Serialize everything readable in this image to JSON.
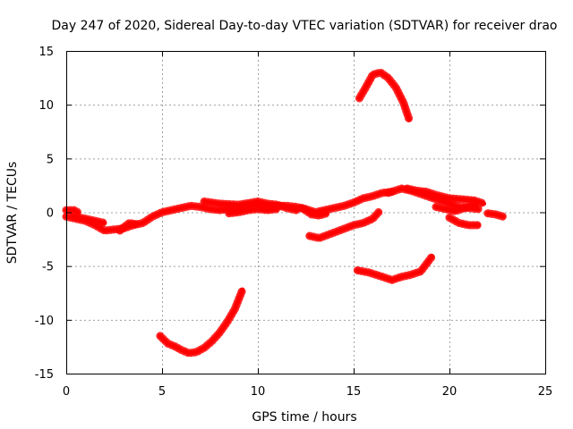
{
  "chart_data": {
    "type": "scatter",
    "title": "Day 247 of 2020, Sidereal Day-to-day VTEC variation (SDTVAR) for receiver drao",
    "xlabel": "GPS time / hours",
    "ylabel": "SDTVAR / TECUs",
    "xlim": [
      0,
      25
    ],
    "ylim": [
      -15,
      15
    ],
    "xticks": [
      0,
      5,
      10,
      15,
      20,
      25
    ],
    "yticks": [
      -15,
      -10,
      -5,
      0,
      5,
      10,
      15
    ],
    "grid": true,
    "color": "#ff0000",
    "series": [
      {
        "name": "arc-main",
        "points": [
          [
            0,
            -0.4
          ],
          [
            0.5,
            -0.6
          ],
          [
            1,
            -0.8
          ],
          [
            1.5,
            -1.2
          ],
          [
            2,
            -1.7
          ],
          [
            2.5,
            -1.6
          ],
          [
            3,
            -1.5
          ],
          [
            3.5,
            -1.2
          ],
          [
            4,
            -1.0
          ],
          [
            4.5,
            -0.4
          ],
          [
            5,
            0.0
          ],
          [
            5.5,
            0.2
          ],
          [
            6,
            0.4
          ],
          [
            6.5,
            0.6
          ],
          [
            7,
            0.5
          ],
          [
            7.5,
            0.3
          ],
          [
            8,
            0.2
          ],
          [
            8.5,
            0.3
          ],
          [
            9,
            0.4
          ],
          [
            9.5,
            0.5
          ],
          [
            10,
            0.6
          ],
          [
            10.5,
            0.5
          ],
          [
            11,
            0.6
          ],
          [
            11.5,
            0.6
          ],
          [
            12,
            0.5
          ],
          [
            12.5,
            0.3
          ],
          [
            13,
            0.0
          ],
          [
            13.5,
            0.2
          ],
          [
            14,
            0.4
          ],
          [
            14.5,
            0.6
          ],
          [
            15,
            0.9
          ],
          [
            15.5,
            1.3
          ],
          [
            16,
            1.5
          ],
          [
            16.5,
            1.8
          ],
          [
            17,
            1.9
          ]
        ]
      },
      {
        "name": "arc-start-a",
        "points": [
          [
            0,
            0.2
          ],
          [
            0.4,
            0.2
          ],
          [
            0.6,
            0.0
          ]
        ]
      },
      {
        "name": "arc-start-b",
        "points": [
          [
            0.4,
            -0.4
          ],
          [
            1.0,
            -0.6
          ],
          [
            1.5,
            -0.8
          ],
          [
            2.0,
            -1.0
          ]
        ]
      },
      {
        "name": "arc-dip",
        "points": [
          [
            2.8,
            -1.7
          ],
          [
            3.0,
            -1.4
          ],
          [
            3.3,
            -1.0
          ],
          [
            3.6,
            -1.1
          ]
        ]
      },
      {
        "name": "arc-mid-a",
        "points": [
          [
            7.2,
            1.0
          ],
          [
            8,
            0.8
          ],
          [
            9,
            0.7
          ],
          [
            10,
            1.0
          ],
          [
            10.5,
            0.8
          ],
          [
            11,
            0.7
          ],
          [
            11.5,
            0.4
          ],
          [
            12,
            0.2
          ]
        ]
      },
      {
        "name": "arc-mid-b",
        "points": [
          [
            8.5,
            -0.1
          ],
          [
            9,
            0.0
          ],
          [
            9.5,
            0.2
          ],
          [
            10,
            0.3
          ],
          [
            10.5,
            0.2
          ],
          [
            11,
            0.3
          ]
        ]
      },
      {
        "name": "arc-mid-c",
        "points": [
          [
            12.3,
            0.4
          ],
          [
            12.8,
            -0.2
          ],
          [
            13.2,
            -0.3
          ],
          [
            13.6,
            -0.1
          ]
        ]
      },
      {
        "name": "arc-late-a",
        "points": [
          [
            16.8,
            1.8
          ],
          [
            17.5,
            2.2
          ],
          [
            18,
            2.0
          ],
          [
            18.5,
            1.7
          ],
          [
            19,
            1.4
          ],
          [
            19.5,
            1.1
          ],
          [
            20,
            0.8
          ],
          [
            20.5,
            0.5
          ],
          [
            21,
            0.4
          ],
          [
            21.5,
            0.3
          ]
        ]
      },
      {
        "name": "arc-late-b",
        "points": [
          [
            17.8,
            2.2
          ],
          [
            18.3,
            2.0
          ],
          [
            18.8,
            1.9
          ],
          [
            19.3,
            1.6
          ],
          [
            20,
            1.3
          ],
          [
            20.7,
            1.2
          ],
          [
            21.3,
            1.1
          ],
          [
            21.8,
            0.8
          ]
        ]
      },
      {
        "name": "arc-late-c",
        "points": [
          [
            19.3,
            0.5
          ],
          [
            19.8,
            0.3
          ],
          [
            20.3,
            0.1
          ],
          [
            20.8,
            0.4
          ],
          [
            21.4,
            0.7
          ]
        ]
      },
      {
        "name": "arc-late-d",
        "points": [
          [
            20,
            -0.5
          ],
          [
            20.5,
            -1.0
          ],
          [
            21,
            -1.2
          ],
          [
            21.5,
            -1.2
          ]
        ]
      },
      {
        "name": "arc-end",
        "points": [
          [
            22,
            -0.1
          ],
          [
            22.4,
            -0.2
          ],
          [
            22.8,
            -0.4
          ]
        ]
      },
      {
        "name": "arc-rise",
        "points": [
          [
            12.7,
            -2.2
          ],
          [
            13.2,
            -2.4
          ],
          [
            13.8,
            -2.0
          ],
          [
            14.4,
            -1.6
          ],
          [
            15,
            -1.2
          ],
          [
            15.5,
            -1.0
          ],
          [
            16,
            -0.6
          ],
          [
            16.3,
            0.0
          ]
        ]
      },
      {
        "name": "arc-high",
        "points": [
          [
            15.3,
            10.6
          ],
          [
            15.6,
            11.5
          ],
          [
            16,
            12.8
          ],
          [
            16.4,
            13.0
          ],
          [
            16.8,
            12.5
          ],
          [
            17.2,
            11.6
          ],
          [
            17.6,
            10.2
          ],
          [
            17.9,
            8.6
          ]
        ]
      },
      {
        "name": "arc-low-mid",
        "points": [
          [
            15.2,
            -5.4
          ],
          [
            15.8,
            -5.6
          ],
          [
            16.5,
            -6.0
          ],
          [
            17.0,
            -6.3
          ],
          [
            17.5,
            -6.0
          ],
          [
            18,
            -5.8
          ],
          [
            18.5,
            -5.5
          ],
          [
            19.1,
            -4.1
          ]
        ]
      },
      {
        "name": "arc-deep",
        "points": [
          [
            4.9,
            -11.5
          ],
          [
            5.3,
            -12.2
          ],
          [
            5.7,
            -12.5
          ],
          [
            6,
            -12.8
          ],
          [
            6.4,
            -13.1
          ],
          [
            6.8,
            -13.0
          ],
          [
            7.2,
            -12.6
          ],
          [
            7.6,
            -12.0
          ],
          [
            8,
            -11.2
          ],
          [
            8.4,
            -10.2
          ],
          [
            8.8,
            -9.0
          ],
          [
            9.2,
            -7.2
          ]
        ]
      }
    ]
  }
}
